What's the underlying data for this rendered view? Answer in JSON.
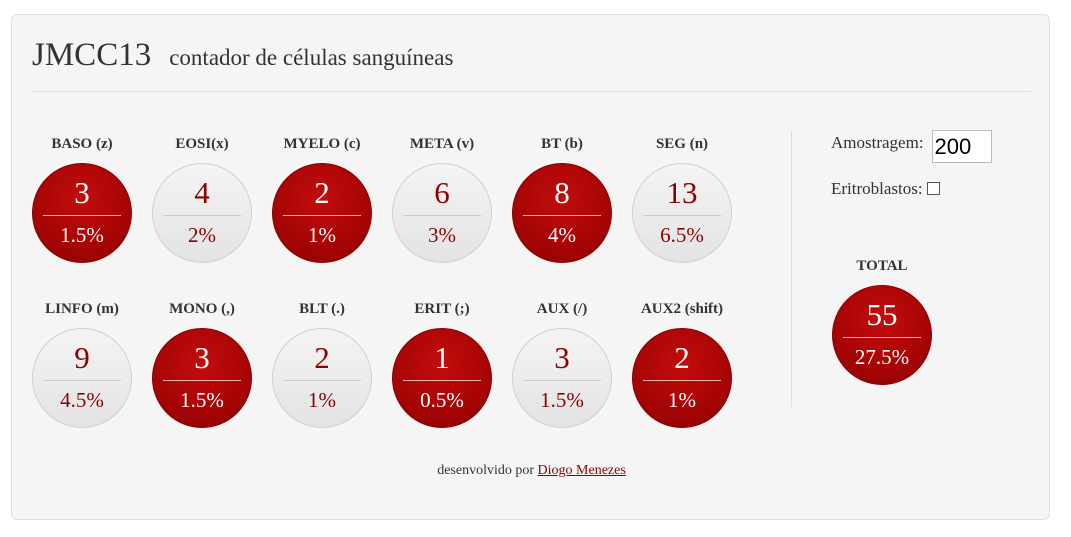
{
  "app": {
    "title": "JMCC13",
    "subtitle": "contador de células sanguíneas"
  },
  "counters_row1": [
    {
      "label": "BASO (z)",
      "count": "3",
      "percent": "1.5%",
      "style": "red"
    },
    {
      "label": "EOSI(x)",
      "count": "4",
      "percent": "2%",
      "style": "grey"
    },
    {
      "label": "MYELO (c)",
      "count": "2",
      "percent": "1%",
      "style": "red"
    },
    {
      "label": "META (v)",
      "count": "6",
      "percent": "3%",
      "style": "grey"
    },
    {
      "label": "BT (b)",
      "count": "8",
      "percent": "4%",
      "style": "red"
    },
    {
      "label": "SEG (n)",
      "count": "13",
      "percent": "6.5%",
      "style": "grey"
    }
  ],
  "counters_row2": [
    {
      "label": "LINFO (m)",
      "count": "9",
      "percent": "4.5%",
      "style": "grey"
    },
    {
      "label": "MONO (,)",
      "count": "3",
      "percent": "1.5%",
      "style": "red"
    },
    {
      "label": "BLT (.)",
      "count": "2",
      "percent": "1%",
      "style": "grey"
    },
    {
      "label": "ERIT (;)",
      "count": "1",
      "percent": "0.5%",
      "style": "red"
    },
    {
      "label": "AUX (/)",
      "count": "3",
      "percent": "1.5%",
      "style": "grey"
    },
    {
      "label": "AUX2 (shift)",
      "count": "2",
      "percent": "1%",
      "style": "red"
    }
  ],
  "settings": {
    "sample_label": "Amostragem:",
    "sample_value": "200",
    "erythroblasts_label": "Eritroblastos:",
    "erythroblasts_checked": false
  },
  "total": {
    "label": "TOTAL",
    "count": "55",
    "percent": "27.5%"
  },
  "footer": {
    "text": "desenvolvido por",
    "author_link": "Diogo Menezes"
  },
  "colors": {
    "accent_red": "#a80505",
    "accent_dark_red": "#8b0000",
    "panel_background": "#f5f5f5",
    "idle_circle": "#e9e9e9"
  }
}
